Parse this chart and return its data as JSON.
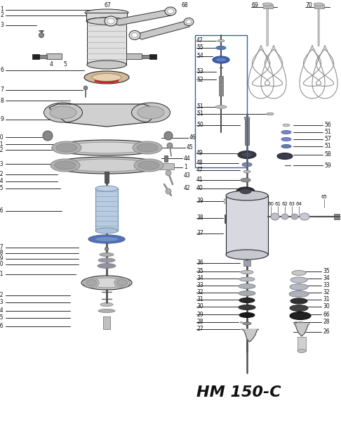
{
  "title": "HM 150-C",
  "bg_color": "#ffffff",
  "line_color": "#2a2a2a",
  "blue_color": "#3a5fa8",
  "red_color": "#cc2222",
  "gray_light": "#d8d8d8",
  "gray_mid": "#b0b0b0",
  "gray_dark": "#808080",
  "fig_width": 4.86,
  "fig_height": 6.0,
  "dpi": 100
}
